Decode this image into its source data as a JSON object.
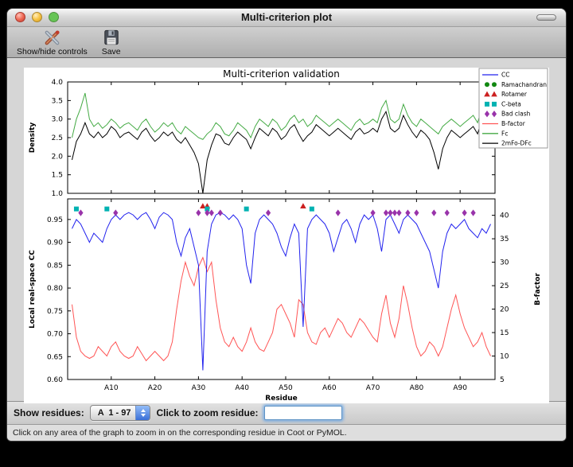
{
  "window": {
    "title": "Multi-criterion plot"
  },
  "toolbar": {
    "items": [
      {
        "label": "Show/hide controls",
        "icon": "tools-icon"
      },
      {
        "label": "Save",
        "icon": "save-icon"
      }
    ]
  },
  "controls": {
    "show_residues_label": "Show residues:",
    "residue_range_value": "A  1 - 97",
    "zoom_prompt_label": "Click to zoom residue:",
    "zoom_input_value": ""
  },
  "status_bar": {
    "text": "Click on any area of the graph to zoom in on the corresponding residue in Coot or PyMOL."
  },
  "chart_data": {
    "type": "line",
    "title": "Multi-criterion validation",
    "xlabel": "Residue",
    "xlim": [
      0,
      98
    ],
    "xtick_positions": [
      10,
      20,
      30,
      40,
      50,
      60,
      70,
      80,
      90
    ],
    "xtick_labels": [
      "A10",
      "A20",
      "A30",
      "A40",
      "A50",
      "A60",
      "A70",
      "A80",
      "A90"
    ],
    "legend": [
      {
        "label": "CC",
        "swatch": "line",
        "color": "#2222ee"
      },
      {
        "label": "Ramachandran",
        "swatch": "circle",
        "color": "#118811"
      },
      {
        "label": "Rotamer",
        "swatch": "triangle",
        "color": "#cc2020"
      },
      {
        "label": "C-beta",
        "swatch": "square",
        "color": "#00b2b2"
      },
      {
        "label": "Bad clash",
        "swatch": "diamond",
        "color": "#9933aa"
      },
      {
        "label": "B-factor",
        "swatch": "line",
        "color": "#ff5555"
      },
      {
        "label": "Fc",
        "swatch": "line",
        "color": "#44aa44"
      },
      {
        "label": "2mFo-DFc",
        "swatch": "line",
        "color": "#000000"
      }
    ],
    "density_plot": {
      "ylabel": "Density",
      "ylim": [
        1.0,
        4.0
      ],
      "yticks": [
        1.0,
        1.5,
        2.0,
        2.5,
        3.0,
        3.5,
        4.0
      ],
      "series": [
        {
          "name": "Fc",
          "color": "#44aa44",
          "values": [
            2.5,
            3.0,
            3.3,
            3.7,
            3.0,
            2.8,
            2.9,
            2.75,
            2.85,
            3.0,
            2.9,
            2.75,
            2.85,
            2.9,
            2.8,
            2.7,
            2.9,
            3.0,
            2.8,
            2.65,
            2.75,
            2.9,
            2.8,
            2.9,
            2.7,
            2.6,
            2.8,
            2.7,
            2.6,
            2.5,
            2.45,
            2.6,
            2.7,
            2.9,
            2.8,
            2.6,
            2.55,
            2.7,
            2.9,
            2.8,
            2.7,
            2.5,
            2.8,
            3.0,
            2.9,
            2.8,
            3.0,
            2.9,
            2.7,
            2.8,
            3.0,
            3.1,
            2.9,
            3.0,
            2.8,
            2.9,
            3.1,
            3.0,
            2.9,
            2.8,
            2.9,
            3.0,
            2.9,
            2.8,
            2.7,
            2.9,
            3.0,
            2.85,
            2.9,
            3.0,
            2.9,
            3.3,
            3.5,
            3.0,
            2.9,
            3.0,
            3.4,
            3.1,
            2.9,
            2.8,
            3.0,
            2.9,
            2.8,
            2.7,
            2.6,
            2.8,
            2.9,
            3.0,
            2.9,
            2.8,
            2.9,
            3.0,
            3.1,
            2.9,
            3.3,
            3.0,
            2.9
          ]
        },
        {
          "name": "2mFo-DFc",
          "color": "#000000",
          "values": [
            1.9,
            2.4,
            2.6,
            2.9,
            2.6,
            2.5,
            2.65,
            2.5,
            2.6,
            2.8,
            2.7,
            2.5,
            2.6,
            2.65,
            2.55,
            2.45,
            2.65,
            2.75,
            2.55,
            2.4,
            2.5,
            2.65,
            2.55,
            2.65,
            2.45,
            2.35,
            2.5,
            2.3,
            2.1,
            1.8,
            1.0,
            1.9,
            2.3,
            2.6,
            2.55,
            2.35,
            2.3,
            2.5,
            2.65,
            2.55,
            2.45,
            2.2,
            2.5,
            2.75,
            2.65,
            2.55,
            2.75,
            2.65,
            2.45,
            2.55,
            2.75,
            2.85,
            2.6,
            2.4,
            2.55,
            2.65,
            2.85,
            2.75,
            2.65,
            2.55,
            2.65,
            2.75,
            2.65,
            2.55,
            2.45,
            2.65,
            2.75,
            2.6,
            2.65,
            2.75,
            2.65,
            3.0,
            3.2,
            2.75,
            2.65,
            2.75,
            3.1,
            2.85,
            2.65,
            2.5,
            2.7,
            2.6,
            2.45,
            2.1,
            1.65,
            2.2,
            2.5,
            2.7,
            2.6,
            2.5,
            2.6,
            2.7,
            2.8,
            2.6,
            3.0,
            2.7,
            2.6
          ]
        }
      ]
    },
    "cc_plot": {
      "ylabel_left": "Local real-space CC",
      "ylim_left": [
        0.6,
        0.995
      ],
      "yticks_left": [
        0.6,
        0.65,
        0.7,
        0.75,
        0.8,
        0.85,
        0.9,
        0.95
      ],
      "ylabel_right": "B-factor",
      "ylim_right": [
        5,
        43.5
      ],
      "yticks_right": [
        5,
        10,
        15,
        20,
        25,
        30,
        35,
        40
      ],
      "series_left": [
        {
          "name": "CC",
          "color": "#2222ee",
          "values": [
            0.93,
            0.95,
            0.94,
            0.92,
            0.9,
            0.92,
            0.91,
            0.9,
            0.93,
            0.95,
            0.96,
            0.95,
            0.96,
            0.965,
            0.96,
            0.95,
            0.96,
            0.965,
            0.95,
            0.93,
            0.955,
            0.965,
            0.96,
            0.95,
            0.9,
            0.87,
            0.91,
            0.93,
            0.89,
            0.85,
            0.62,
            0.88,
            0.94,
            0.96,
            0.965,
            0.96,
            0.95,
            0.96,
            0.95,
            0.93,
            0.85,
            0.81,
            0.92,
            0.95,
            0.96,
            0.95,
            0.94,
            0.92,
            0.89,
            0.87,
            0.91,
            0.94,
            0.92,
            0.715,
            0.93,
            0.95,
            0.96,
            0.95,
            0.94,
            0.92,
            0.88,
            0.91,
            0.94,
            0.95,
            0.93,
            0.9,
            0.94,
            0.96,
            0.95,
            0.96,
            0.93,
            0.88,
            0.95,
            0.96,
            0.94,
            0.92,
            0.95,
            0.96,
            0.95,
            0.94,
            0.92,
            0.9,
            0.88,
            0.84,
            0.8,
            0.88,
            0.92,
            0.94,
            0.93,
            0.94,
            0.95,
            0.93,
            0.92,
            0.91,
            0.93,
            0.92,
            0.94
          ]
        }
      ],
      "series_right": [
        {
          "name": "B-factor",
          "color": "#ff5555",
          "values": [
            21,
            14,
            11,
            10,
            9.5,
            10,
            12,
            11,
            10,
            12,
            13,
            11,
            10,
            9.5,
            10,
            12,
            10.5,
            9,
            10,
            11,
            10,
            9,
            10,
            13,
            20,
            26,
            30,
            27,
            25,
            29,
            31,
            28,
            30,
            22,
            16,
            13,
            12,
            14,
            12,
            11,
            13,
            16,
            13,
            11.5,
            11,
            13,
            15,
            20,
            21,
            19,
            17,
            14,
            22,
            21,
            15,
            13,
            12.5,
            15,
            16,
            14,
            16,
            18,
            17,
            15,
            14,
            16,
            18,
            17,
            15.5,
            14,
            13,
            19,
            23,
            17,
            14,
            18,
            25,
            21,
            16,
            12,
            10,
            11,
            13,
            12,
            10,
            12,
            16,
            20,
            23,
            19,
            16,
            14,
            12,
            13,
            15,
            12,
            10
          ]
        }
      ],
      "outlier_markers": [
        {
          "name": "Rotamer",
          "shape": "triangle",
          "color": "#cc2020",
          "y": 0.979,
          "residues": [
            31,
            32,
            54
          ]
        },
        {
          "name": "C-beta",
          "shape": "square",
          "color": "#00b2b2",
          "y": 0.973,
          "residues": [
            2,
            9,
            32,
            41,
            56
          ]
        },
        {
          "name": "Bad clash",
          "shape": "diamond",
          "color": "#9933aa",
          "y": 0.9645,
          "residues": [
            3,
            11,
            30,
            32,
            33,
            35,
            46,
            62,
            70,
            73,
            74,
            75,
            76,
            78,
            80,
            84,
            87,
            91,
            93
          ]
        }
      ]
    }
  }
}
